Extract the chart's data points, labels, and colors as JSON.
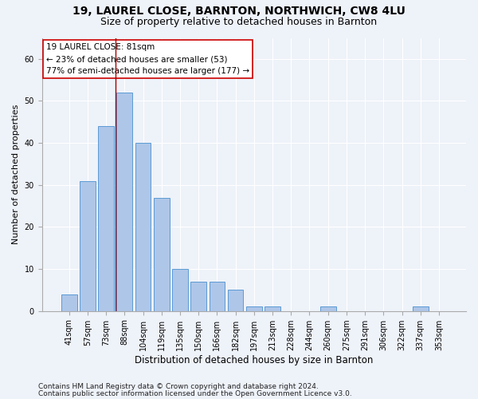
{
  "title1": "19, LAUREL CLOSE, BARNTON, NORTHWICH, CW8 4LU",
  "title2": "Size of property relative to detached houses in Barnton",
  "xlabel": "Distribution of detached houses by size in Barnton",
  "ylabel": "Number of detached properties",
  "categories": [
    "41sqm",
    "57sqm",
    "73sqm",
    "88sqm",
    "104sqm",
    "119sqm",
    "135sqm",
    "150sqm",
    "166sqm",
    "182sqm",
    "197sqm",
    "213sqm",
    "228sqm",
    "244sqm",
    "260sqm",
    "275sqm",
    "291sqm",
    "306sqm",
    "322sqm",
    "337sqm",
    "353sqm"
  ],
  "values": [
    4,
    31,
    44,
    52,
    40,
    27,
    10,
    7,
    7,
    5,
    1,
    1,
    0,
    0,
    1,
    0,
    0,
    0,
    0,
    1,
    0
  ],
  "bar_color": "#aec6e8",
  "bar_edge_color": "#5b9bd5",
  "background_color": "#eef2f9",
  "grid_color": "#ffffff",
  "vline_x": 2.5,
  "vline_color": "#aa0000",
  "annotation_text": "19 LAUREL CLOSE: 81sqm\n← 23% of detached houses are smaller (53)\n77% of semi-detached houses are larger (177) →",
  "annotation_box_color": "#ffffff",
  "annotation_box_edge": "#cc0000",
  "footnote1": "Contains HM Land Registry data © Crown copyright and database right 2024.",
  "footnote2": "Contains public sector information licensed under the Open Government Licence v3.0.",
  "ylim": [
    0,
    65
  ],
  "title1_fontsize": 10,
  "title2_fontsize": 9,
  "xlabel_fontsize": 8.5,
  "ylabel_fontsize": 8,
  "tick_fontsize": 7,
  "annotation_fontsize": 7.5,
  "footnote_fontsize": 6.5
}
